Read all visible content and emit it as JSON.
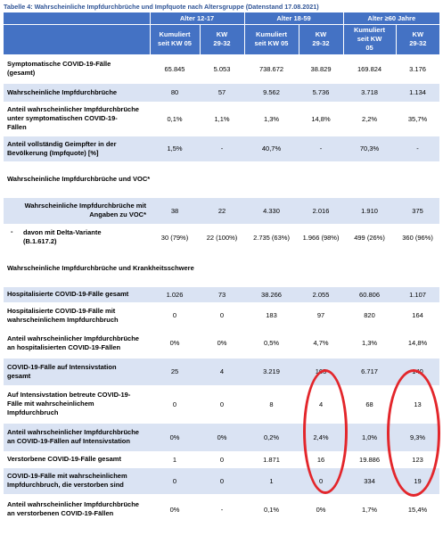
{
  "caption": "Tabelle 4: Wahrscheinliche Impfdurchbrüche und Impfquote nach Altersgruppe (Datenstand 17.08.2021)",
  "header": {
    "groups": [
      "Alter 12-17",
      "Alter 18-59",
      "Alter ≥60 Jahre"
    ],
    "sub": [
      [
        "Kumuliert",
        "seit KW 05"
      ],
      [
        "KW",
        "29-32"
      ],
      [
        "Kumuliert",
        "seit KW 05"
      ],
      [
        "KW",
        "29-32"
      ],
      [
        "Kumuliert",
        "seit KW",
        "05"
      ],
      [
        "KW",
        "29-32"
      ]
    ]
  },
  "rows": {
    "r01": {
      "label": [
        "Symptomatische COVID-19-Fälle",
        "(gesamt)"
      ],
      "values": [
        "65.845",
        "5.053",
        "738.672",
        "38.829",
        "169.824",
        "3.176"
      ]
    },
    "r02": {
      "label": [
        "Wahrscheinliche Impfdurchbrüche"
      ],
      "values": [
        "80",
        "57",
        "9.562",
        "5.736",
        "3.718",
        "1.134"
      ]
    },
    "r03": {
      "label": [
        "Anteil wahrscheinlicher Impfdurchbrüche",
        "unter symptomatischen COVID-19-",
        "Fällen"
      ],
      "values": [
        "0,1%",
        "1,1%",
        "1,3%",
        "14,8%",
        "2,2%",
        "35,7%"
      ]
    },
    "r04": {
      "label": [
        "Anteil vollständig Geimpfter in der",
        "Bevölkerung (Impfquote) [%]"
      ],
      "values": [
        "1,5%",
        "-",
        "40,7%",
        "-",
        "70,3%",
        "-"
      ]
    },
    "s1": {
      "label": "Wahrscheinliche Impfdurchbrüche und VOC*"
    },
    "r05": {
      "label": [
        "Wahrscheinliche Impfdurchbrüche mit",
        "Angaben zu VOC*"
      ],
      "values": [
        "38",
        "22",
        "4.330",
        "2.016",
        "1.910",
        "375"
      ]
    },
    "r06": {
      "bullet": "-",
      "label": [
        "davon mit Delta-Variante",
        "(B.1.617.2)"
      ],
      "values": [
        "30 (79%)",
        "22 (100%)",
        "2.735 (63%)",
        "1.966 (98%)",
        "499 (26%)",
        "360 (96%)"
      ]
    },
    "s2": {
      "label": "Wahrscheinliche Impfdurchbrüche und Krankheitsschwere"
    },
    "r07": {
      "label": [
        "Hospitalisierte COVID-19-Fälle gesamt"
      ],
      "values": [
        "1.026",
        "73",
        "38.266",
        "2.055",
        "60.806",
        "1.107"
      ]
    },
    "r08": {
      "label": [
        "Hospitalisierte COVID-19-Fälle mit",
        "wahrscheinlichem Impfdurchbruch"
      ],
      "values": [
        "0",
        "0",
        "183",
        "97",
        "820",
        "164"
      ]
    },
    "r09": {
      "label": [
        "Anteil wahrscheinlicher Impfdurchbrüche",
        "an hospitalisierten COVID-19-Fällen"
      ],
      "values": [
        "0%",
        "0%",
        "0,5%",
        "4,7%",
        "1,3%",
        "14,8%"
      ]
    },
    "r10": {
      "label": [
        "COVID-19-Fälle auf Intensivstation",
        "gesamt"
      ],
      "values": [
        "25",
        "4",
        "3.219",
        "165",
        "6.717",
        "140"
      ]
    },
    "r11": {
      "label": [
        "Auf Intensivstation betreute COVID-19-",
        "Fälle mit wahrscheinlichem",
        "Impfdurchbruch"
      ],
      "values": [
        "0",
        "0",
        "8",
        "4",
        "68",
        "13"
      ]
    },
    "r12": {
      "label": [
        "Anteil wahrscheinlicher Impfdurchbrüche",
        "an COVID-19-Fällen auf Intensivstation"
      ],
      "values": [
        "0%",
        "0%",
        "0,2%",
        "2,4%",
        "1,0%",
        "9,3%"
      ]
    },
    "r13": {
      "label": [
        "Verstorbene COVID-19-Fälle gesamt"
      ],
      "values": [
        "1",
        "0",
        "1.871",
        "16",
        "19.886",
        "123"
      ]
    },
    "r14": {
      "label": [
        "COVID-19-Fälle mit wahrscheinlichem",
        "Impfdurchbruch, die verstorben sind"
      ],
      "values": [
        "0",
        "0",
        "1",
        "0",
        "334",
        "19"
      ]
    },
    "r15": {
      "label": [
        "Anteil wahrscheinlicher Impfdurchbrüche",
        "an verstorbenen COVID-19-Fällen"
      ],
      "values": [
        "0%",
        "-",
        "0,1%",
        "0%",
        "1,7%",
        "15,4%"
      ]
    }
  },
  "annotation_color": "#e3262b"
}
